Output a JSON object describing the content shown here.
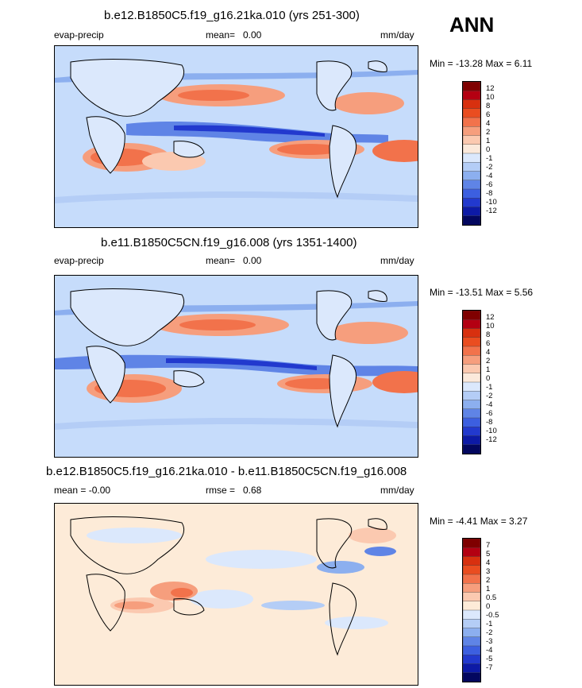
{
  "page": {
    "season": "ANN"
  },
  "colors": {
    "scale12": [
      "#7f0000",
      "#b40012",
      "#d8300f",
      "#ea4d20",
      "#f2724b",
      "#f69e7d",
      "#fbc9b0",
      "#fbe9db",
      "#dbe8fc",
      "#b4cdf6",
      "#8cafef",
      "#5f84e6",
      "#3c5fe0",
      "#2239ce",
      "#0d1aa6",
      "#03075f"
    ],
    "scale7": [
      "#7f0000",
      "#b40012",
      "#d8300f",
      "#ea4d20",
      "#f2724b",
      "#f69e7d",
      "#fbc9b0",
      "#fdebd8",
      "#dbe8fc",
      "#b4cdf6",
      "#8cafef",
      "#5f84e6",
      "#3c5fe0",
      "#2239ce",
      "#0d1aa6",
      "#03075f"
    ]
  },
  "panels": [
    {
      "title": "b.e12.B1850C5.f19_g16.21ka.010 (yrs 251-300)",
      "left_label": "evap-precip",
      "mean_label": "mean=",
      "mean_value": "0.00",
      "units": "mm/day",
      "stats": "Min = -13.28 Max =   6.11",
      "colorbar_labels": [
        "12",
        "10",
        "8",
        "6",
        "4",
        "2",
        "1",
        "0",
        "-1",
        "-2",
        "-4",
        "-6",
        "-8",
        "-10",
        "-12"
      ]
    },
    {
      "title": "b.e11.B1850C5CN.f19_g16.008 (yrs 1351-1400)",
      "left_label": "evap-precip",
      "mean_label": "mean=",
      "mean_value": "0.00",
      "units": "mm/day",
      "stats": "Min = -13.51 Max =   5.56",
      "colorbar_labels": [
        "12",
        "10",
        "8",
        "6",
        "4",
        "2",
        "1",
        "0",
        "-1",
        "-2",
        "-4",
        "-6",
        "-8",
        "-10",
        "-12"
      ]
    },
    {
      "title": "b.e12.B1850C5.f19_g16.21ka.010 - b.e11.B1850C5CN.f19_g16.008",
      "left_label": "mean =  -0.00",
      "mean_label": "rmse =",
      "mean_value": "0.68",
      "units": "mm/day",
      "stats": "Min =  -4.41 Max =   3.27",
      "colorbar_labels": [
        "7",
        "5",
        "4",
        "3",
        "2",
        "1",
        "0.5",
        "0",
        "-0.5",
        "-1",
        "-2",
        "-3",
        "-4",
        "-5",
        "-7"
      ]
    }
  ],
  "chart_data": [
    {
      "type": "heatmap",
      "title": "b.e12.B1850C5.f19_g16.21ka.010 (yrs 251-300)",
      "variable": "evap-precip",
      "units": "mm/day",
      "mean": 0.0,
      "min": -13.28,
      "max": 6.11,
      "levels": [
        -12,
        -10,
        -8,
        -6,
        -4,
        -2,
        -1,
        0,
        1,
        2,
        4,
        6,
        8,
        10,
        12
      ]
    },
    {
      "type": "heatmap",
      "title": "b.e11.B1850C5CN.f19_g16.008 (yrs 1351-1400)",
      "variable": "evap-precip",
      "units": "mm/day",
      "mean": 0.0,
      "min": -13.51,
      "max": 5.56,
      "levels": [
        -12,
        -10,
        -8,
        -6,
        -4,
        -2,
        -1,
        0,
        1,
        2,
        4,
        6,
        8,
        10,
        12
      ]
    },
    {
      "type": "heatmap",
      "title": "b.e12.B1850C5.f19_g16.21ka.010 - b.e11.B1850C5CN.f19_g16.008",
      "units": "mm/day",
      "mean": -0.0,
      "rmse": 0.68,
      "min": -4.41,
      "max": 3.27,
      "levels": [
        -7,
        -5,
        -4,
        -3,
        -2,
        -1,
        -0.5,
        0,
        0.5,
        1,
        2,
        3,
        4,
        5,
        7
      ]
    }
  ]
}
